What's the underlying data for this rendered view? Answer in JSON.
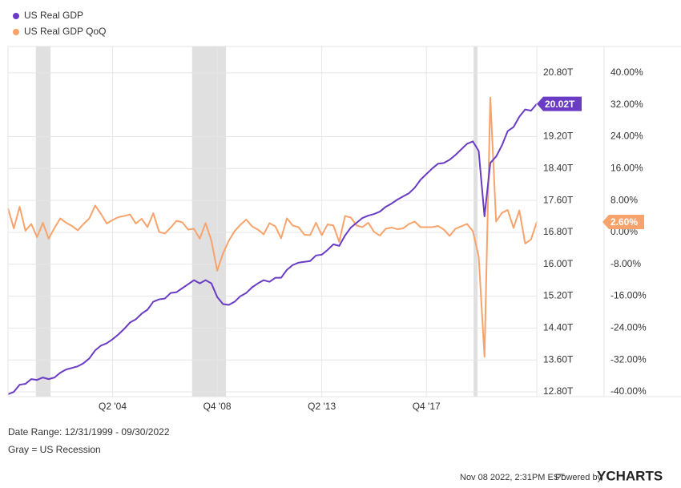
{
  "chart_data": {
    "type": "line",
    "x": [
      2000,
      2000.25,
      2000.5,
      2000.75,
      2001,
      2001.25,
      2001.5,
      2001.75,
      2002,
      2002.25,
      2002.5,
      2002.75,
      2003,
      2003.25,
      2003.5,
      2003.75,
      2004,
      2004.25,
      2004.5,
      2004.75,
      2005,
      2005.25,
      2005.5,
      2005.75,
      2006,
      2006.25,
      2006.5,
      2006.75,
      2007,
      2007.25,
      2007.5,
      2007.75,
      2008,
      2008.25,
      2008.5,
      2008.75,
      2009,
      2009.25,
      2009.5,
      2009.75,
      2010,
      2010.25,
      2010.5,
      2010.75,
      2011,
      2011.25,
      2011.5,
      2011.75,
      2012,
      2012.25,
      2012.5,
      2012.75,
      2013,
      2013.25,
      2013.5,
      2013.75,
      2014,
      2014.25,
      2014.5,
      2014.75,
      2015,
      2015.25,
      2015.5,
      2015.75,
      2016,
      2016.25,
      2016.5,
      2016.75,
      2017,
      2017.25,
      2017.5,
      2017.75,
      2018,
      2018.25,
      2018.5,
      2018.75,
      2019,
      2019.25,
      2019.5,
      2019.75,
      2020,
      2020.25,
      2020.5,
      2020.75,
      2021,
      2021.25,
      2021.5,
      2021.75,
      2022,
      2022.25,
      2022.5,
      2022.75
    ],
    "series": [
      {
        "name": "US Real GDP",
        "color": "#6a3bc4",
        "end_label": "20.02T",
        "values": [
          12.74,
          12.8,
          12.98,
          13.0,
          13.12,
          13.1,
          13.16,
          13.12,
          13.16,
          13.28,
          13.36,
          13.4,
          13.44,
          13.52,
          13.64,
          13.84,
          13.96,
          14.02,
          14.12,
          14.24,
          14.38,
          14.54,
          14.62,
          14.76,
          14.86,
          15.06,
          15.12,
          15.14,
          15.28,
          15.3,
          15.4,
          15.5,
          15.6,
          15.52,
          15.6,
          15.52,
          15.18,
          15.0,
          14.98,
          15.06,
          15.2,
          15.28,
          15.42,
          15.52,
          15.6,
          15.56,
          15.66,
          15.66,
          15.86,
          15.98,
          16.04,
          16.06,
          16.08,
          16.22,
          16.24,
          16.36,
          16.5,
          16.46,
          16.72,
          16.92,
          17.04,
          17.16,
          17.22,
          17.26,
          17.32,
          17.44,
          17.52,
          17.62,
          17.7,
          17.78,
          17.92,
          18.12,
          18.26,
          18.4,
          18.52,
          18.54,
          18.62,
          18.74,
          18.88,
          19.02,
          19.08,
          18.84,
          17.2,
          18.54,
          18.7,
          18.98,
          19.34,
          19.44,
          19.7,
          19.88,
          19.85,
          20.02
        ]
      },
      {
        "name": "US Real GDP QoQ",
        "color": "#f7a36b",
        "axis": "y2",
        "end_label": "2.60%",
        "values": [
          6.0,
          1.0,
          6.4,
          0.4,
          2.1,
          -1.2,
          2.4,
          -1.6,
          1.1,
          3.5,
          2.4,
          1.6,
          0.5,
          2.1,
          3.5,
          6.7,
          4.6,
          2.2,
          3.1,
          3.8,
          4.1,
          4.5,
          2.2,
          3.4,
          1.3,
          4.8,
          0.1,
          -0.3,
          1.2,
          2.9,
          2.5,
          0.7,
          0.9,
          -1.6,
          2.3,
          -2.1,
          -9.6,
          -5.3,
          -2.1,
          0.3,
          1.9,
          3.2,
          1.5,
          0.7,
          -0.5,
          2.3,
          1.5,
          -1.5,
          3.5,
          1.7,
          1.3,
          -0.6,
          -0.7,
          2.4,
          -0.7,
          2.0,
          1.7,
          -2.4,
          4.1,
          3.7,
          1.7,
          1.3,
          2.4,
          0.1,
          -0.8,
          0.9,
          1.2,
          0.8,
          1.0,
          2.1,
          2.7,
          1.3,
          1.3,
          1.3,
          1.6,
          0.7,
          -0.9,
          0.9,
          1.5,
          2.1,
          0.3,
          -6.0,
          -31.2,
          33.8,
          2.7,
          4.9,
          5.6,
          1.1,
          5.5,
          -2.8,
          -1.8,
          2.6
        ]
      }
    ],
    "xlim": [
      2000,
      2022.75
    ],
    "xticks": [
      {
        "value": 2004.5,
        "label": "Q2 '04"
      },
      {
        "value": 2009,
        "label": "Q4 '08"
      },
      {
        "value": 2013.5,
        "label": "Q2 '13"
      },
      {
        "value": 2018,
        "label": "Q4 '17"
      }
    ],
    "ylim": [
      12.68,
      21.46
    ],
    "yticks": [
      {
        "value": 12.8,
        "label": "12.80T"
      },
      {
        "value": 13.6,
        "label": "13.60T"
      },
      {
        "value": 14.4,
        "label": "14.40T"
      },
      {
        "value": 15.2,
        "label": "15.20T"
      },
      {
        "value": 16.0,
        "label": "16.00T"
      },
      {
        "value": 16.8,
        "label": "16.80T"
      },
      {
        "value": 17.6,
        "label": "17.60T"
      },
      {
        "value": 18.4,
        "label": "18.40T"
      },
      {
        "value": 19.2,
        "label": "19.20T"
      },
      {
        "value": 20.8,
        "label": "20.80T"
      }
    ],
    "y2lim": [
      -41.2,
      46.6
    ],
    "y2ticks": [
      {
        "value": -40,
        "label": "-40.00%"
      },
      {
        "value": -32,
        "label": "-32.00%"
      },
      {
        "value": -24,
        "label": "-24.00%"
      },
      {
        "value": -16,
        "label": "-16.00%"
      },
      {
        "value": -8,
        "label": "-8.00%"
      },
      {
        "value": 0,
        "label": "0.00%"
      },
      {
        "value": 8,
        "label": "8.00%"
      },
      {
        "value": 16,
        "label": "16.00%"
      },
      {
        "value": 24,
        "label": "24.00%"
      },
      {
        "value": 32,
        "label": "32.00%"
      },
      {
        "value": 40,
        "label": "40.00%"
      }
    ],
    "recessions": [
      [
        2001.2,
        2001.83
      ],
      [
        2007.92,
        2009.38
      ],
      [
        2020.03,
        2020.2
      ]
    ],
    "recession_color": "#e0e0e0",
    "grid": true,
    "legend": "top-left",
    "date_range": "Date Range: 12/31/1999 - 09/30/2022",
    "note": "Gray = US Recession",
    "timestamp": "Nov 08 2022, 2:31PM EST.",
    "powered_by": "Powered by",
    "brand": "YCHARTS"
  }
}
